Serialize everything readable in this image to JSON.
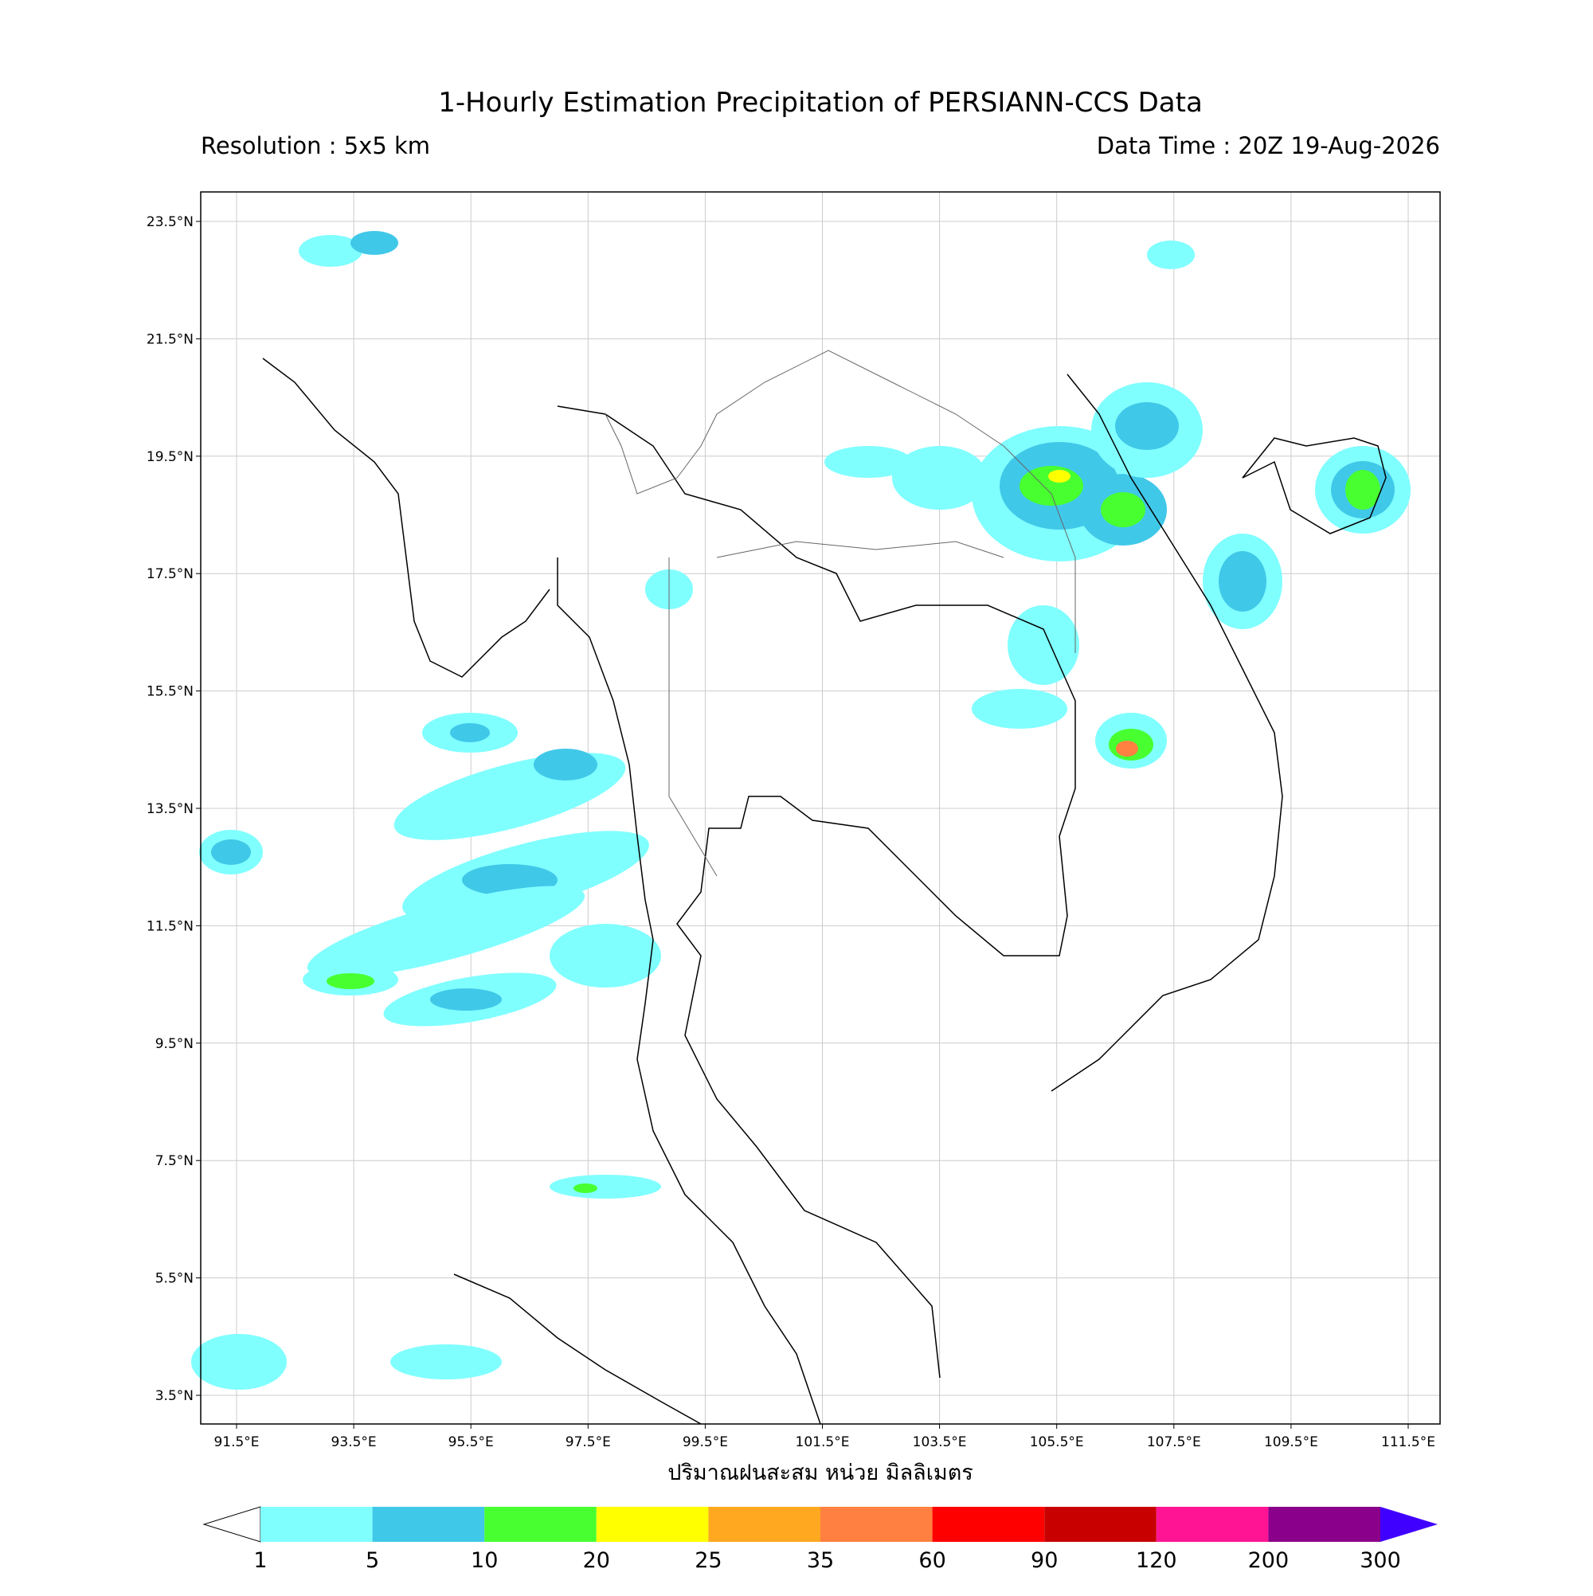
{
  "header": {
    "title": "1-Hourly Estimation Precipitation of PERSIANN-CCS Data",
    "resolution": "Resolution : 5x5 km",
    "data_time": "Data Time : 20Z 19-Aug-2026"
  },
  "map": {
    "lat_labels": [
      "23.5°N",
      "21.5°N",
      "19.5°N",
      "17.5°N",
      "15.5°N",
      "13.5°N",
      "11.5°N",
      "9.5°N",
      "7.5°N",
      "5.5°N",
      "3.5°N"
    ],
    "lon_labels": [
      "91.5°E",
      "93.5°E",
      "95.5°E",
      "97.5°E",
      "99.5°E",
      "101.5°E",
      "103.5°E",
      "105.5°E",
      "107.5°E",
      "109.5°E",
      "111.5°E"
    ],
    "x_label": "ปริมาณฝนสะสม หน่วย มิลลิเมตร"
  },
  "colorbar": {
    "levels": [
      "1",
      "5",
      "10",
      "20",
      "25",
      "35",
      "60",
      "90",
      "120",
      "200",
      "300"
    ],
    "colors": [
      "#80ffff",
      "#40c8e8",
      "#48ff30",
      "#ffff00",
      "#ffa820",
      "#ff8040",
      "#ff0000",
      "#c80000",
      "#ff1493",
      "#8b008b"
    ],
    "over_color": "#4000ff"
  }
}
